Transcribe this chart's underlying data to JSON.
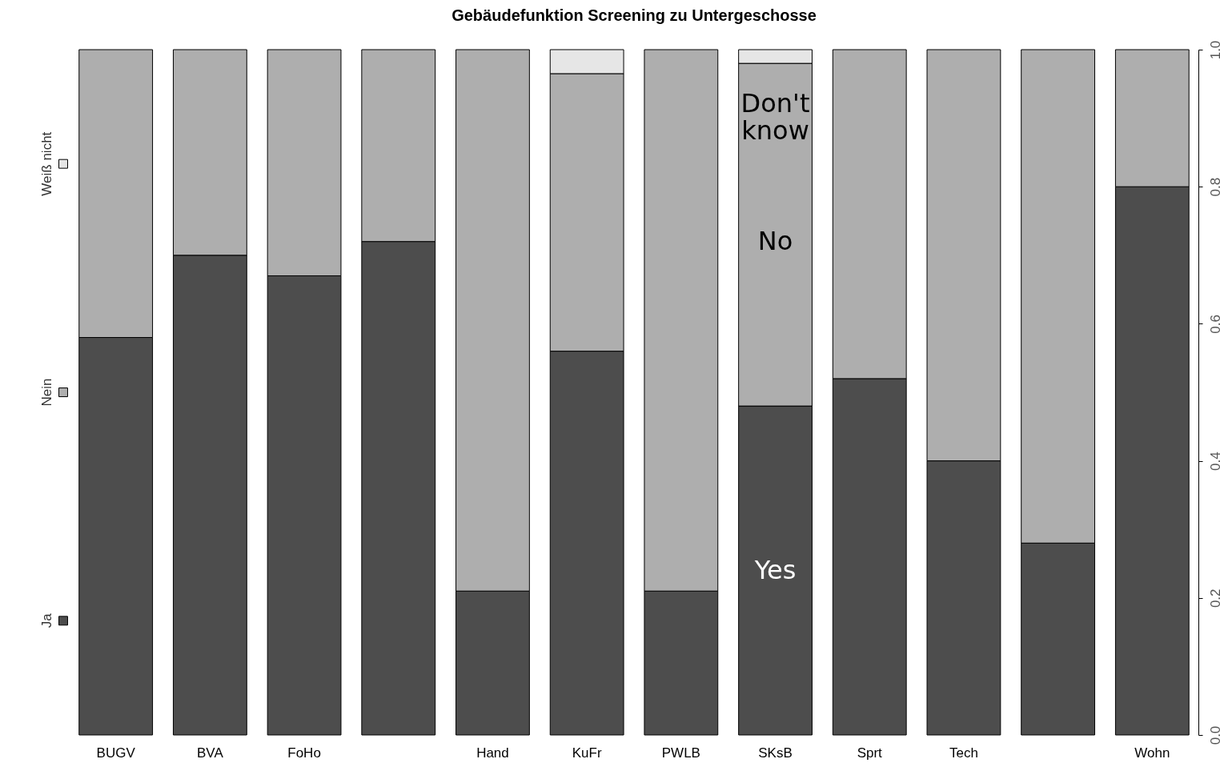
{
  "chart_data": {
    "type": "bar",
    "title": "Gebäudefunktion Screening zu Untergeschosse",
    "stacked": true,
    "categories": [
      "BUGV",
      "BVA",
      "FoHo",
      null,
      "Hand",
      "KuFr",
      "PWLB",
      "SKsB",
      "Sprt",
      "Tech",
      null,
      "Wohn"
    ],
    "series": [
      {
        "name": "Ja",
        "color": "#4d4d4d",
        "values": [
          0.58,
          0.7,
          0.67,
          0.72,
          0.21,
          0.56,
          0.21,
          0.48,
          0.52,
          0.4,
          0.28,
          0.8
        ]
      },
      {
        "name": "Nein",
        "color": "#aeaeae",
        "values": [
          0.42,
          0.3,
          0.33,
          0.28,
          0.79,
          0.405,
          0.79,
          0.5,
          0.48,
          0.6,
          0.72,
          0.2
        ]
      },
      {
        "name": "Weiß nicht",
        "color": "#e6e6e6",
        "values": [
          null,
          null,
          null,
          null,
          null,
          0.035,
          null,
          0.02,
          null,
          null,
          null,
          null
        ]
      }
    ],
    "ylim": [
      0,
      1
    ],
    "yticks": [
      {
        "value": 0,
        "label": "0.0"
      },
      0.2,
      0.4,
      0.6,
      0.8,
      {
        "value": 1,
        "label": "1.0"
      }
    ],
    "grid": false,
    "legend": "left",
    "annotations": [
      "Don't know",
      "No",
      "Yes"
    ]
  }
}
